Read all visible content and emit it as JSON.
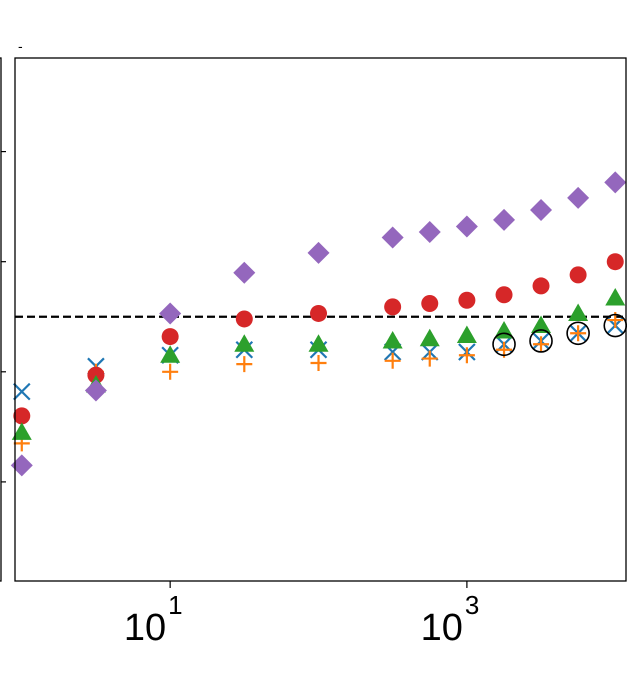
{
  "chart_data": {
    "type": "scatter",
    "title": "-",
    "xlabel": "",
    "ylabel": "",
    "x_scale": "log",
    "xlim": [
      0.9,
      12000
    ],
    "ylim": [
      -2.4,
      2.35
    ],
    "grid": false,
    "legend": null,
    "reference_line": {
      "y": 0,
      "style": "dashed",
      "color": "#000000"
    },
    "x_ticks": [
      {
        "value": 10,
        "base": "10",
        "exp": "1"
      },
      {
        "value": 1000,
        "base": "10",
        "exp": "3"
      }
    ],
    "y_ticks": [
      -2.5,
      -1.5,
      -0.5,
      0.5,
      1.5
    ],
    "series": [
      {
        "marker": "x",
        "color": "#1f77b4",
        "x": [
          1,
          3.16,
          10,
          31.6,
          100,
          316,
          562,
          1000,
          1780,
          3160,
          5620,
          10000
        ],
        "y": [
          -0.68,
          -0.45,
          -0.35,
          -0.3,
          -0.3,
          -0.32,
          -0.32,
          -0.32,
          -0.25,
          -0.22,
          -0.15,
          -0.08
        ]
      },
      {
        "marker": "+",
        "color": "#ff7f0e",
        "x": [
          1,
          3.16,
          10,
          31.6,
          100,
          316,
          562,
          1000,
          1780,
          3160,
          5620,
          10000
        ],
        "y": [
          -1.15,
          -0.5,
          -0.5,
          -0.43,
          -0.42,
          -0.4,
          -0.38,
          -0.35,
          -0.3,
          -0.25,
          -0.15,
          -0.03
        ]
      },
      {
        "marker": "o",
        "color": "#d62728",
        "x": [
          1,
          3.16,
          10,
          31.6,
          100,
          316,
          562,
          1000,
          1780,
          3160,
          5620,
          10000
        ],
        "y": [
          -0.9,
          -0.53,
          -0.18,
          -0.02,
          0.03,
          0.09,
          0.12,
          0.15,
          0.2,
          0.28,
          0.38,
          0.5
        ]
      },
      {
        "marker": "^",
        "color": "#2ca02c",
        "x": [
          1,
          3.16,
          10,
          31.6,
          100,
          316,
          562,
          1000,
          1780,
          3160,
          5620,
          10000
        ],
        "y": [
          -1.05,
          -0.62,
          -0.35,
          -0.25,
          -0.25,
          -0.22,
          -0.2,
          -0.17,
          -0.13,
          -0.08,
          0.03,
          0.17
        ]
      },
      {
        "marker": "D",
        "color": "#9467bd",
        "x": [
          1,
          3.16,
          10,
          31.6,
          100,
          316,
          562,
          1000,
          1780,
          3160,
          5620,
          10000
        ],
        "y": [
          -1.35,
          -0.67,
          0.03,
          0.4,
          0.58,
          0.72,
          0.77,
          0.82,
          0.88,
          0.97,
          1.08,
          1.22
        ]
      },
      {
        "marker": "o-open",
        "color": "#000000",
        "x": [
          1780,
          3160,
          5620,
          10000
        ],
        "y": [
          -0.25,
          -0.22,
          -0.15,
          -0.08
        ]
      }
    ]
  }
}
